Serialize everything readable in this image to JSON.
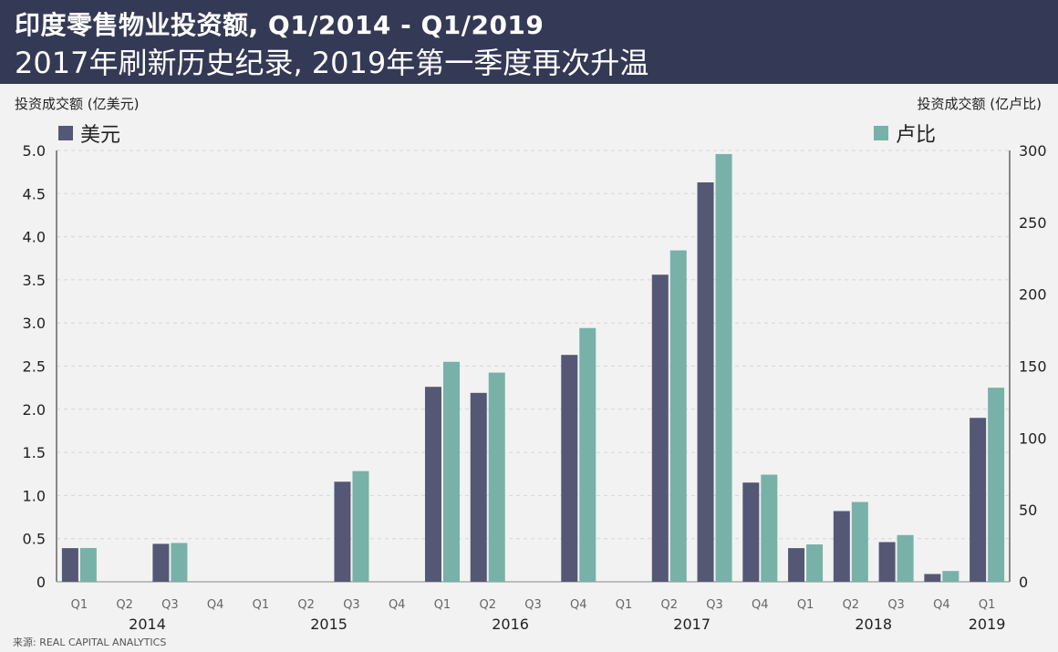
{
  "header": {
    "title": "印度零售物业投资额, Q1/2014 - Q1/2019",
    "subtitle": "2017年刷新历史纪录, 2019年第一季度再次升温"
  },
  "source": "来源: REAL CAPITAL ANALYTICS",
  "colors": {
    "usd": "#555874",
    "inr": "#78b1a8",
    "header_bg": "#343a55"
  },
  "chart_data": {
    "type": "bar",
    "ylabel_left": "投资成交额 (亿美元)",
    "ylabel_right": "投资成交额 (亿卢比)",
    "ylim_left": [
      0,
      5.0
    ],
    "ylim_right": [
      0,
      300
    ],
    "yticks_left": [
      "5.0",
      "4.5",
      "4.0",
      "3.5",
      "3.0",
      "2.5",
      "2.0",
      "1.5",
      "1.0",
      "0.5",
      "0"
    ],
    "yticks_right": [
      "300",
      "250",
      "200",
      "150",
      "100",
      "50",
      "0"
    ],
    "categories": [
      "Q1",
      "Q2",
      "Q3",
      "Q4",
      "Q1",
      "Q2",
      "Q3",
      "Q4",
      "Q1",
      "Q2",
      "Q3",
      "Q4",
      "Q1",
      "Q2",
      "Q3",
      "Q4",
      "Q1",
      "Q2",
      "Q3",
      "Q4",
      "Q1"
    ],
    "years": [
      {
        "label": "2014",
        "start": 0,
        "end": 3
      },
      {
        "label": "2015",
        "start": 4,
        "end": 7
      },
      {
        "label": "2016",
        "start": 8,
        "end": 11
      },
      {
        "label": "2017",
        "start": 12,
        "end": 15
      },
      {
        "label": "2018",
        "start": 16,
        "end": 19
      },
      {
        "label": "2019",
        "start": 20,
        "end": 20
      }
    ],
    "legend_position": "top",
    "grid": "dashed horizontal",
    "series": [
      {
        "name": "美元",
        "axis": "left",
        "values": [
          0.39,
          0,
          0.44,
          0,
          0,
          0,
          1.16,
          0,
          2.26,
          2.19,
          0,
          2.63,
          0,
          3.56,
          4.63,
          1.15,
          0.39,
          0.82,
          0.46,
          0.09,
          1.9
        ]
      },
      {
        "name": "卢比",
        "axis": "right",
        "values": [
          23.5,
          0,
          27,
          0,
          0,
          0,
          77,
          0,
          153,
          145.5,
          0,
          176.5,
          0,
          230.5,
          297.5,
          74.5,
          26,
          55.5,
          32.5,
          7.5,
          135
        ]
      }
    ]
  }
}
